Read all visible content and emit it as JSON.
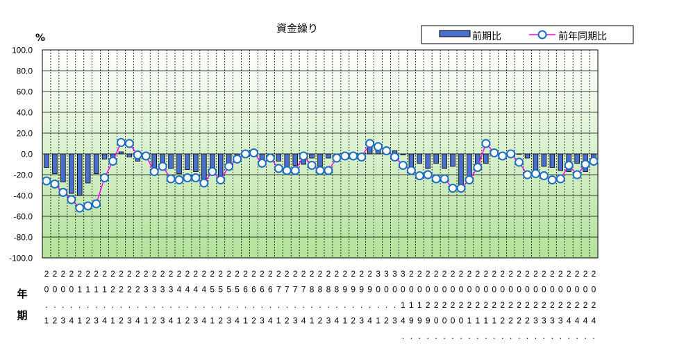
{
  "chart_data": {
    "type": "bar+line",
    "title": "資金繰り",
    "y_unit": "%",
    "ylim": [
      -100,
      100
    ],
    "y_ticks": [
      "100.0",
      "80.0",
      "60.0",
      "40.0",
      "20.0",
      "0.0",
      "-20.0",
      "-40.0",
      "-60.0",
      "-80.0",
      "-100.0"
    ],
    "x_axis_row_labels": [
      "年",
      "期"
    ],
    "x_labels": [
      "2\n0\n.\n1",
      "2\n0\n.\n2",
      "2\n0\n.\n3",
      "2\n0\n.\n4",
      "2\n1\n.\n1",
      "2\n1\n.\n2",
      "2\n1\n.\n3",
      "2\n1\n.\n4",
      "2\n2\n.\n1",
      "2\n2\n.\n2",
      "2\n2\n.\n3",
      "2\n2\n.\n4",
      "2\n3\n.\n1",
      "2\n3\n.\n2",
      "2\n3\n.\n3",
      "2\n3\n.\n4",
      "2\n4\n.\n1",
      "2\n4\n.\n2",
      "2\n4\n.\n3",
      "2\n4\n.\n4",
      "2\n5\n.\n1",
      "2\n5\n.\n2",
      "2\n5\n.\n3",
      "2\n5\n.\n4",
      "2\n6\n.\n1",
      "2\n6\n.\n2",
      "2\n6\n.\n3",
      "2\n6\n.\n4",
      "2\n7\n.\n1",
      "2\n7\n.\n2",
      "2\n7\n.\n3",
      "2\n7\n.\n4",
      "2\n8\n.\n1",
      "2\n8\n.\n2",
      "2\n8\n.\n3",
      "2\n8\n.\n4",
      "2\n9\n.\n1",
      "2\n9\n.\n2",
      "2\n9\n.\n3",
      "2\n9\n.\n4",
      "3\n0\n.\n1",
      "3\n0\n.\n2",
      "3\n0\n.\n3",
      "3\n0\n1\n4\n.\n1",
      "2\n0\n1\n9\n.\n2",
      "2\n0\n1\n9\n.\n3",
      "2\n0\n2\n9\n.\n4",
      "2\n0\n2\n0\n.\n1",
      "2\n0\n2\n0\n.\n2",
      "2\n0\n2\n0\n.\n3",
      "2\n0\n2\n0\n.\n4",
      "2\n0\n2\n1\n.\n1",
      "2\n0\n2\n1\n.\n2",
      "2\n0\n2\n1\n.\n3",
      "2\n0\n2\n1\n.\n4",
      "2\n0\n2\n2\n.\n1",
      "2\n0\n2\n2\n.\n2",
      "2\n0\n2\n2\n.\n3",
      "2\n0\n2\n2\n.\n4",
      "2\n0\n2\n3\n.\n1",
      "2\n0\n2\n3\n.\n2",
      "2\n0\n2\n3\n.\n3",
      "2\n0\n2\n3\n.\n4",
      "2\n0\n2\n4\n.\n1",
      "2\n0\n2\n4\n.\n2",
      "2\n0\n2\n4\n.\n3",
      "2\n0\n2\n4\n.\n4"
    ],
    "series": [
      {
        "name": "前期比",
        "type": "bar",
        "color": "#4a6ecb",
        "values": [
          -13,
          -19,
          -27,
          -38,
          -40,
          -28,
          -19,
          -5,
          -6,
          2,
          -3,
          -7,
          -3,
          -13,
          -10,
          -14,
          -19,
          -15,
          -17,
          -24,
          -13,
          -26,
          -10,
          -2,
          0,
          -2,
          -8,
          -3,
          -7,
          -14,
          -11,
          -10,
          -4,
          -12,
          -4,
          0,
          0,
          0,
          0,
          11,
          7,
          0,
          3,
          -1,
          -13,
          -9,
          -14,
          -9,
          -14,
          -12,
          -31,
          -24,
          -13,
          -9,
          1,
          -3,
          -3,
          0,
          -4,
          -15,
          -12,
          -13,
          -16,
          -17,
          -9,
          -17,
          -7
        ]
      },
      {
        "name": "前年同期比",
        "type": "line",
        "color": "#ff00ff",
        "marker_color": "#1a6fc4",
        "values": [
          -26,
          -29,
          -37,
          -44,
          -52,
          -50,
          -48,
          -23,
          -7,
          11,
          10,
          -1,
          -2,
          -17,
          -12,
          -24,
          -25,
          -23,
          -23,
          -28,
          -17,
          -25,
          -12,
          -5,
          0,
          1,
          -9,
          -4,
          -14,
          -16,
          -16,
          -2,
          -11,
          -16,
          -16,
          -4,
          -2,
          -2,
          -3,
          10,
          7,
          3,
          -3,
          -11,
          -16,
          -21,
          -20,
          -24,
          -24,
          -33,
          -33,
          -25,
          -13,
          10,
          1,
          -2,
          0,
          -8,
          -20,
          -19,
          -21,
          -25,
          -24,
          -11,
          -20,
          -10,
          -7
        ]
      }
    ],
    "legend_position": "top-right",
    "grid": true,
    "colors": {
      "plot_bg_top": "#ffffff",
      "plot_bg_bottom": "#b4e49c",
      "grid": "#000000"
    }
  }
}
